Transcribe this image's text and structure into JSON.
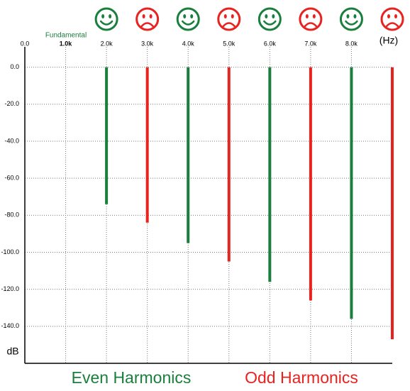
{
  "chart_data": {
    "type": "harmonics",
    "annotation": "Fundamental",
    "x_label": "(Hz)",
    "y_label": "dB",
    "xlim": [
      0,
      9000
    ],
    "xticks": [
      {
        "value": 0,
        "label": "0.0"
      },
      {
        "value": 1000,
        "label": "1.0k"
      },
      {
        "value": 2000,
        "label": "2.0k"
      },
      {
        "value": 3000,
        "label": "3.0k"
      },
      {
        "value": 4000,
        "label": "4.0k"
      },
      {
        "value": 5000,
        "label": "5.0k"
      },
      {
        "value": 6000,
        "label": "6.0k"
      },
      {
        "value": 7000,
        "label": "7.0k"
      },
      {
        "value": 8000,
        "label": "8.0k"
      }
    ],
    "ylim": [
      -160,
      11
    ],
    "yticks": [
      {
        "value": 0,
        "label": "0.0"
      },
      {
        "value": -20,
        "label": "-20.0"
      },
      {
        "value": -40,
        "label": "-40.0"
      },
      {
        "value": -60,
        "label": "-60.0"
      },
      {
        "value": -80,
        "label": "-80.0"
      },
      {
        "value": -100,
        "label": "-100.0"
      },
      {
        "value": -120,
        "label": "-120.0"
      },
      {
        "value": -140,
        "label": "-140.0"
      }
    ],
    "grid": true,
    "series": [
      {
        "name": "Even Harmonics",
        "color": "#1a7f3c",
        "icon": "smile",
        "x": [
          2000,
          4000,
          6000,
          8000
        ],
        "values": [
          -74,
          -95,
          -116,
          -136
        ]
      },
      {
        "name": "Odd Harmonics",
        "color": "#e8231f",
        "icon": "frown",
        "x": [
          3000,
          5000,
          7000,
          9000
        ],
        "values": [
          -84,
          -105,
          -126,
          -147
        ]
      }
    ]
  }
}
